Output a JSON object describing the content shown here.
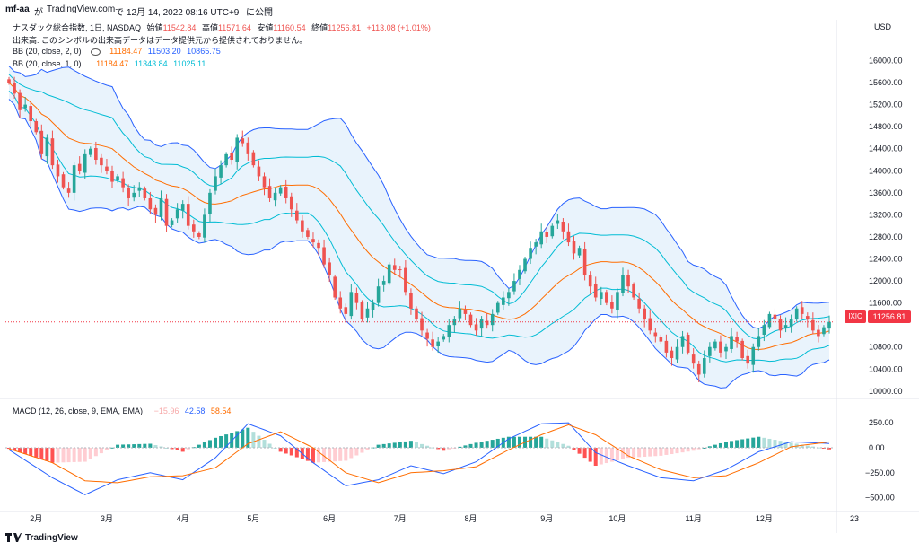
{
  "topbar": {
    "user": "mf-aa",
    "ga": "が",
    "site": "TradingView.com",
    "de": "で",
    "date": "12月 14, 2022 08:16 UTC+9",
    "published": "に公開"
  },
  "legend": {
    "line1_prefix": "ナスダック総合指数, 1日, NASDAQ",
    "open_label": "始値",
    "open_value": "11542.84",
    "high_label": "高値",
    "high_value": "11571.64",
    "low_label": "安値",
    "low_value": "11160.54",
    "close_label": "終値",
    "close_value": "11256.81",
    "change": "+113.08 (+1.01%)",
    "volume_note": "出来高: このシンボルの出来高データはデータ提供元から提供されておりません。",
    "bb1_name": "BB (20, close, 2, 0)",
    "bb1_v1": "11184.47",
    "bb1_v2": "11503.20",
    "bb1_v3": "10865.75",
    "bb2_name": "BB (20, close, 1, 0)",
    "bb2_v1": "11184.47",
    "bb2_v2": "11343.84",
    "bb2_v3": "11025.11",
    "macd_name": "MACD (12, 26, close, 9, EMA, EMA)",
    "macd_hist": "−15.96",
    "macd_line": "42.58",
    "macd_signal": "58.54"
  },
  "axis": {
    "currency": "USD",
    "price_ticks": [
      "16000.00",
      "15600.00",
      "15200.00",
      "14800.00",
      "14400.00",
      "14000.00",
      "13600.00",
      "13200.00",
      "12800.00",
      "12400.00",
      "12000.00",
      "11600.00",
      "10800.00",
      "10400.00",
      "10000.00"
    ],
    "macd_ticks": [
      "250.00",
      "0.00",
      "−250.00",
      "−500.00"
    ],
    "months": [
      "2月",
      "3月",
      "4月",
      "5月",
      "6月",
      "7月",
      "8月",
      "9月",
      "10月",
      "11月",
      "12月",
      "23"
    ],
    "last_price": "11256.81",
    "symbol": "IXIC"
  },
  "footer": {
    "brand": "TradingView"
  },
  "colors": {
    "up": "#26a69a",
    "down": "#ef5350",
    "bb_outer": "#2962ff",
    "bb_inner": "#00bcd4",
    "basis": "#ff6d00",
    "band_fill": "#e3f0fb",
    "macd_line": "#2962ff",
    "signal_line": "#ff6d00"
  },
  "chart_data": {
    "type": "candlestick",
    "title": "ナスダック総合指数, 1日, NASDAQ",
    "ylim": [
      9900,
      16350
    ],
    "x_months": [
      "2月",
      "3月",
      "4月",
      "5月",
      "6月",
      "7月",
      "8月",
      "9月",
      "10月",
      "11月",
      "12月"
    ],
    "close_path": [
      [
        0,
        15600
      ],
      [
        1,
        15400
      ],
      [
        2,
        15100
      ],
      [
        3,
        15200
      ],
      [
        4,
        14900
      ],
      [
        5,
        14700
      ],
      [
        6,
        14300
      ],
      [
        7,
        14600
      ],
      [
        8,
        14100
      ],
      [
        9,
        13900
      ],
      [
        10,
        13700
      ],
      [
        11,
        13600
      ],
      [
        12,
        14100
      ],
      [
        13,
        14000
      ],
      [
        14,
        14300
      ],
      [
        15,
        14400
      ],
      [
        16,
        14200
      ],
      [
        17,
        14100
      ],
      [
        18,
        14000
      ],
      [
        19,
        13800
      ],
      [
        20,
        13900
      ],
      [
        21,
        13700
      ],
      [
        22,
        13500
      ],
      [
        23,
        13600
      ],
      [
        24,
        13700
      ],
      [
        25,
        13500
      ],
      [
        26,
        13300
      ],
      [
        27,
        13200
      ],
      [
        28,
        13500
      ],
      [
        29,
        13000
      ],
      [
        30,
        13100
      ],
      [
        31,
        13300
      ],
      [
        32,
        13400
      ],
      [
        33,
        13000
      ],
      [
        34,
        12900
      ],
      [
        35,
        12800
      ],
      [
        36,
        13200
      ],
      [
        37,
        13600
      ],
      [
        38,
        13900
      ],
      [
        39,
        14100
      ],
      [
        40,
        14300
      ],
      [
        41,
        14200
      ],
      [
        42,
        14600
      ],
      [
        43,
        14500
      ],
      [
        44,
        14300
      ],
      [
        45,
        14100
      ],
      [
        46,
        13900
      ],
      [
        47,
        13700
      ],
      [
        48,
        13500
      ],
      [
        49,
        13600
      ],
      [
        50,
        13700
      ],
      [
        51,
        13500
      ],
      [
        52,
        13300
      ],
      [
        53,
        13100
      ],
      [
        54,
        12900
      ],
      [
        55,
        12800
      ],
      [
        56,
        12700
      ],
      [
        57,
        12600
      ],
      [
        58,
        12300
      ],
      [
        59,
        12100
      ],
      [
        60,
        11700
      ],
      [
        61,
        11500
      ],
      [
        62,
        11400
      ],
      [
        63,
        11800
      ],
      [
        64,
        11600
      ],
      [
        65,
        11300
      ],
      [
        66,
        11500
      ],
      [
        67,
        11600
      ],
      [
        68,
        11900
      ],
      [
        69,
        12000
      ],
      [
        70,
        12300
      ],
      [
        71,
        12200
      ],
      [
        72,
        12200
      ],
      [
        73,
        11800
      ],
      [
        74,
        11500
      ],
      [
        75,
        11300
      ],
      [
        76,
        11100
      ],
      [
        77,
        10950
      ],
      [
        78,
        10800
      ],
      [
        79,
        10900
      ],
      [
        80,
        11000
      ],
      [
        81,
        11200
      ],
      [
        82,
        11300
      ],
      [
        83,
        11500
      ],
      [
        84,
        11400
      ],
      [
        85,
        11200
      ],
      [
        86,
        11100
      ],
      [
        87,
        11300
      ],
      [
        88,
        11200
      ],
      [
        89,
        11400
      ],
      [
        90,
        11600
      ],
      [
        91,
        11700
      ],
      [
        92,
        11800
      ],
      [
        93,
        12000
      ],
      [
        94,
        12200
      ],
      [
        95,
        12400
      ],
      [
        96,
        12600
      ],
      [
        97,
        12700
      ],
      [
        98,
        12900
      ],
      [
        99,
        12800
      ],
      [
        100,
        13000
      ],
      [
        101,
        13100
      ],
      [
        102,
        12900
      ],
      [
        103,
        12700
      ],
      [
        104,
        12500
      ],
      [
        105,
        12600
      ],
      [
        106,
        12100
      ],
      [
        107,
        11900
      ],
      [
        108,
        11700
      ],
      [
        109,
        11800
      ],
      [
        110,
        11600
      ],
      [
        111,
        11500
      ],
      [
        112,
        11800
      ],
      [
        113,
        12100
      ],
      [
        114,
        11900
      ],
      [
        115,
        11700
      ],
      [
        116,
        11500
      ],
      [
        117,
        11300
      ],
      [
        118,
        11100
      ],
      [
        119,
        11000
      ],
      [
        120,
        10900
      ],
      [
        121,
        10700
      ],
      [
        122,
        10600
      ],
      [
        123,
        10800
      ],
      [
        124,
        11000
      ],
      [
        125,
        10700
      ],
      [
        126,
        10500
      ],
      [
        127,
        10300
      ],
      [
        128,
        10600
      ],
      [
        129,
        10800
      ],
      [
        130,
        10900
      ],
      [
        131,
        10700
      ],
      [
        132,
        10800
      ],
      [
        133,
        11000
      ],
      [
        134,
        10900
      ],
      [
        135,
        10600
      ],
      [
        136,
        10500
      ],
      [
        137,
        10800
      ],
      [
        138,
        11000
      ],
      [
        139,
        11200
      ],
      [
        140,
        11400
      ],
      [
        141,
        11300
      ],
      [
        142,
        11100
      ],
      [
        143,
        11200
      ],
      [
        144,
        11300
      ],
      [
        145,
        11500
      ],
      [
        146,
        11400
      ],
      [
        147,
        11300
      ],
      [
        148,
        11100
      ],
      [
        149,
        11000
      ],
      [
        150,
        11160
      ],
      [
        151,
        11257
      ]
    ],
    "macd_ylim": [
      -620,
      350
    ],
    "macd_path": [
      [
        0,
        -20
      ],
      [
        8,
        -300
      ],
      [
        14,
        -470
      ],
      [
        20,
        -320
      ],
      [
        26,
        -250
      ],
      [
        32,
        -320
      ],
      [
        38,
        -100
      ],
      [
        44,
        240
      ],
      [
        50,
        120
      ],
      [
        56,
        -150
      ],
      [
        62,
        -380
      ],
      [
        68,
        -320
      ],
      [
        74,
        -180
      ],
      [
        80,
        -260
      ],
      [
        86,
        -140
      ],
      [
        92,
        90
      ],
      [
        98,
        240
      ],
      [
        103,
        250
      ],
      [
        108,
        -50
      ],
      [
        114,
        -180
      ],
      [
        120,
        -300
      ],
      [
        126,
        -330
      ],
      [
        132,
        -220
      ],
      [
        138,
        -40
      ],
      [
        144,
        60
      ],
      [
        151,
        43
      ]
    ],
    "signal_path": [
      [
        0,
        -10
      ],
      [
        8,
        -150
      ],
      [
        14,
        -330
      ],
      [
        20,
        -350
      ],
      [
        26,
        -290
      ],
      [
        32,
        -280
      ],
      [
        38,
        -200
      ],
      [
        44,
        40
      ],
      [
        50,
        160
      ],
      [
        56,
        0
      ],
      [
        62,
        -250
      ],
      [
        68,
        -350
      ],
      [
        74,
        -250
      ],
      [
        80,
        -230
      ],
      [
        86,
        -190
      ],
      [
        92,
        -20
      ],
      [
        98,
        130
      ],
      [
        103,
        230
      ],
      [
        108,
        130
      ],
      [
        114,
        -80
      ],
      [
        120,
        -220
      ],
      [
        126,
        -300
      ],
      [
        132,
        -280
      ],
      [
        138,
        -150
      ],
      [
        144,
        10
      ],
      [
        151,
        59
      ]
    ]
  }
}
